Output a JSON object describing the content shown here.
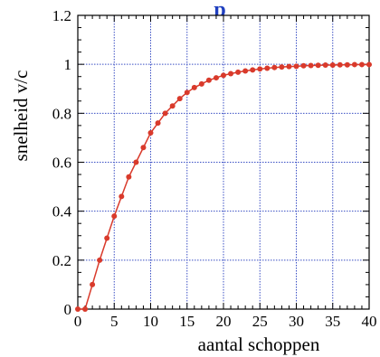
{
  "chart_data": {
    "type": "line",
    "title": "p",
    "xlabel": "aantal schoppen",
    "ylabel": "snelheid  v/c",
    "xlim": [
      0,
      40
    ],
    "ylim": [
      0,
      1.2
    ],
    "x_ticks": [
      0,
      5,
      10,
      15,
      20,
      25,
      30,
      35,
      40
    ],
    "y_ticks": [
      0,
      0.2,
      0.4,
      0.6,
      0.8,
      1,
      1.2
    ],
    "grid": true,
    "colors": {
      "series": "#d93a2b",
      "grid": "#3a4fc4",
      "title": "#1f3fbf"
    },
    "series": [
      {
        "x": [
          0,
          1,
          2,
          3,
          4,
          5,
          6,
          7,
          8,
          9,
          10,
          11,
          12,
          13,
          14,
          15,
          16,
          17,
          18,
          19,
          20,
          21,
          22,
          23,
          24,
          25,
          26,
          27,
          28,
          29,
          30,
          31,
          32,
          33,
          34,
          35,
          36,
          37,
          38,
          39,
          40
        ],
        "values": [
          0,
          0,
          0.1,
          0.2,
          0.29,
          0.38,
          0.46,
          0.54,
          0.6,
          0.66,
          0.72,
          0.76,
          0.8,
          0.83,
          0.86,
          0.885,
          0.905,
          0.92,
          0.935,
          0.945,
          0.955,
          0.962,
          0.968,
          0.973,
          0.977,
          0.981,
          0.984,
          0.987,
          0.989,
          0.991,
          0.992,
          0.994,
          0.995,
          0.996,
          0.997,
          0.997,
          0.998,
          0.998,
          0.999,
          0.999,
          0.999
        ]
      }
    ]
  }
}
